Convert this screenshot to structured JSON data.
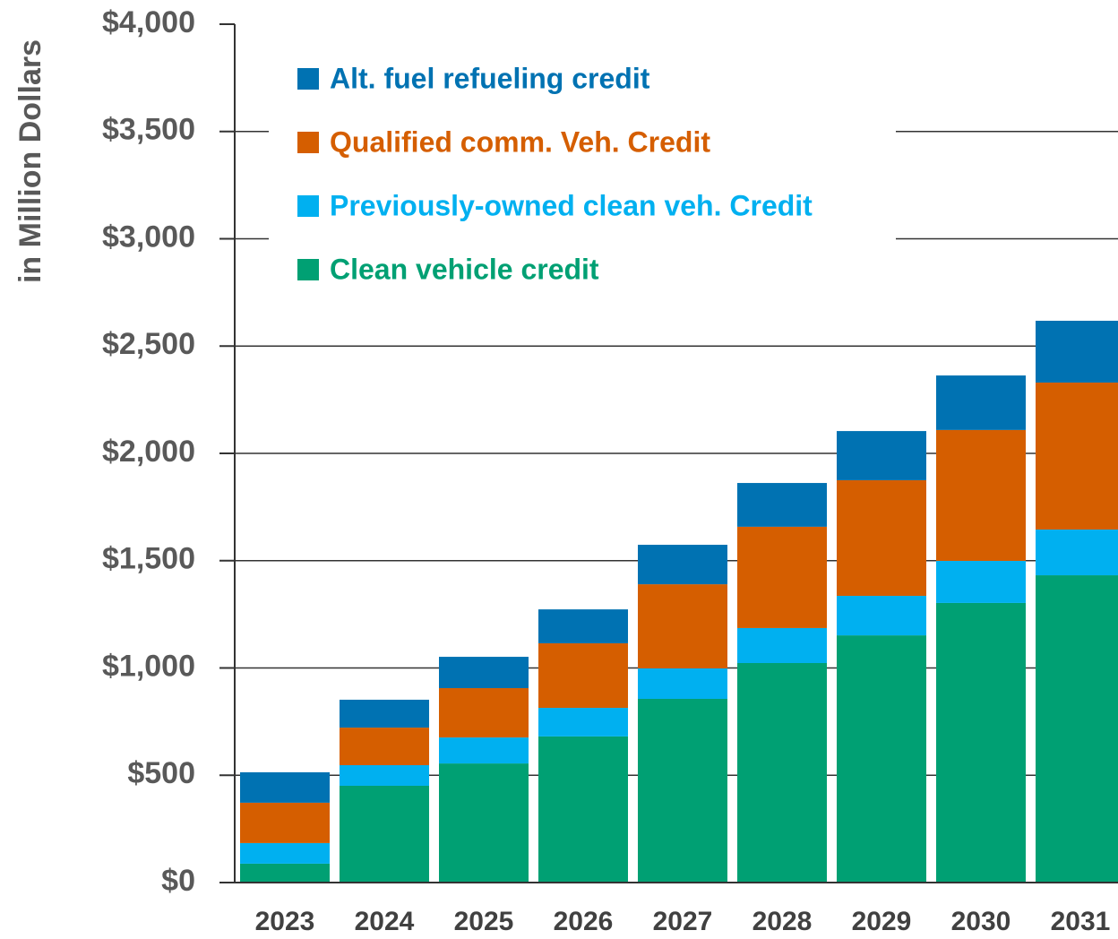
{
  "chart_data": {
    "type": "stacked_bar",
    "ylabel": "in Million Dollars",
    "categories": [
      "2023",
      "2024",
      "2025",
      "2026",
      "2027",
      "2028",
      "2029",
      "2030",
      "2031"
    ],
    "series": [
      {
        "name": "Clean vehicle credit",
        "color": "#00a073",
        "values": [
          88,
          451,
          555,
          681,
          856,
          1023,
          1152,
          1303,
          1432
        ]
      },
      {
        "name": "Previously-owned clean veh. Credit",
        "color": "#00b0f0",
        "values": [
          96,
          96,
          121,
          133,
          142,
          163,
          184,
          196,
          213
        ]
      },
      {
        "name": "Qualified comm. Veh. Credit",
        "color": "#d55e00",
        "values": [
          188,
          175,
          230,
          301,
          392,
          472,
          539,
          610,
          685
        ]
      },
      {
        "name": "Alt. fuel refueling credit",
        "color": "#0072b2",
        "values": [
          142,
          130,
          146,
          158,
          184,
          204,
          229,
          254,
          288
        ]
      }
    ],
    "ylim": [
      0,
      4000
    ],
    "yticks": [
      {
        "value": 0,
        "label": "$0"
      },
      {
        "value": 500,
        "label": "$500"
      },
      {
        "value": 1000,
        "label": "$1,000"
      },
      {
        "value": 1500,
        "label": "$1,500"
      },
      {
        "value": 2000,
        "label": "$2,000"
      },
      {
        "value": 2500,
        "label": "$2,500"
      },
      {
        "value": 3000,
        "label": "$3,000"
      },
      {
        "value": 3500,
        "label": "$3,500"
      },
      {
        "value": 4000,
        "label": "$4,000"
      }
    ],
    "grid": true,
    "legend": "top-left"
  }
}
